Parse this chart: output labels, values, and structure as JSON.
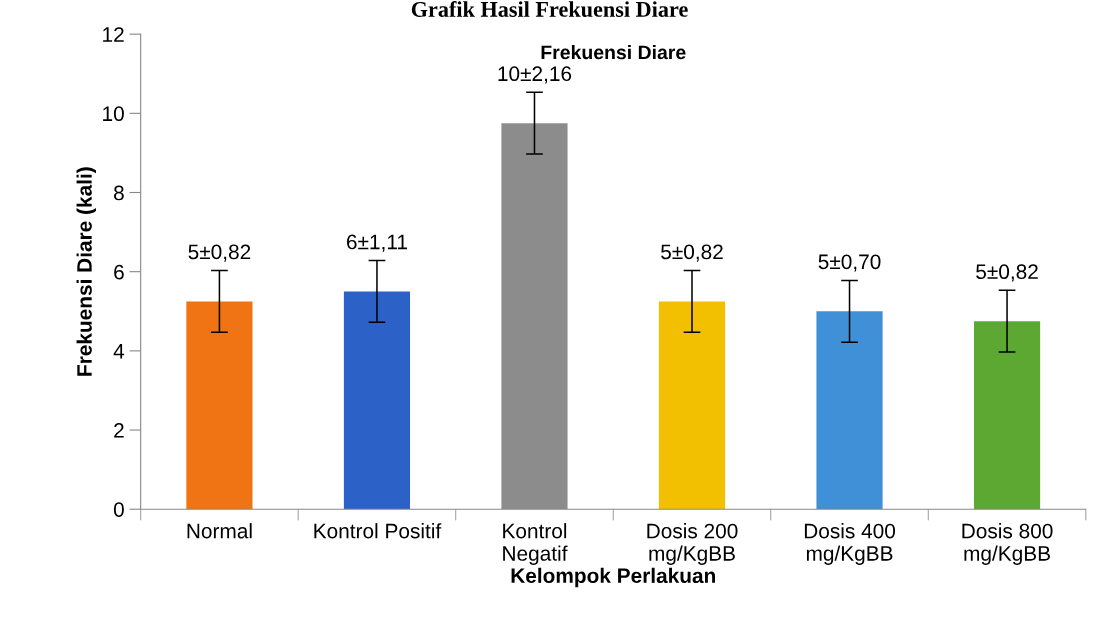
{
  "chart_data": {
    "type": "bar",
    "title": "Grafik Hasil Frekuensi Diare",
    "subtitle": "Frekuensi Diare",
    "xlabel": "Kelompok Perlakuan",
    "ylabel": "Frekuensi Diare (kali)",
    "categories": [
      "Normal",
      "Kontrol Positif",
      "Kontrol\nNegatif",
      "Dosis 200\nmg/KgBB",
      "Dosis 400\nmg/KgBB",
      "Dosis 800\nmg/KgBB"
    ],
    "values": [
      5.25,
      5.5,
      9.75,
      5.25,
      5.0,
      4.75
    ],
    "errors": [
      0.78,
      0.78,
      0.78,
      0.78,
      0.78,
      0.78
    ],
    "colors": [
      "#f07414",
      "#2c62c8",
      "#8c8c8c",
      "#f2c000",
      "#4090d8",
      "#5ca832"
    ],
    "value_labels": [
      "5±0,82",
      "6±1,11",
      "10±2,16",
      "5±0,82",
      "5±0,70",
      "5±0,82"
    ],
    "ylim": [
      0,
      12
    ],
    "yticks": [
      0,
      2,
      4,
      6,
      8,
      10,
      12
    ],
    "grid": false,
    "legend": false
  }
}
